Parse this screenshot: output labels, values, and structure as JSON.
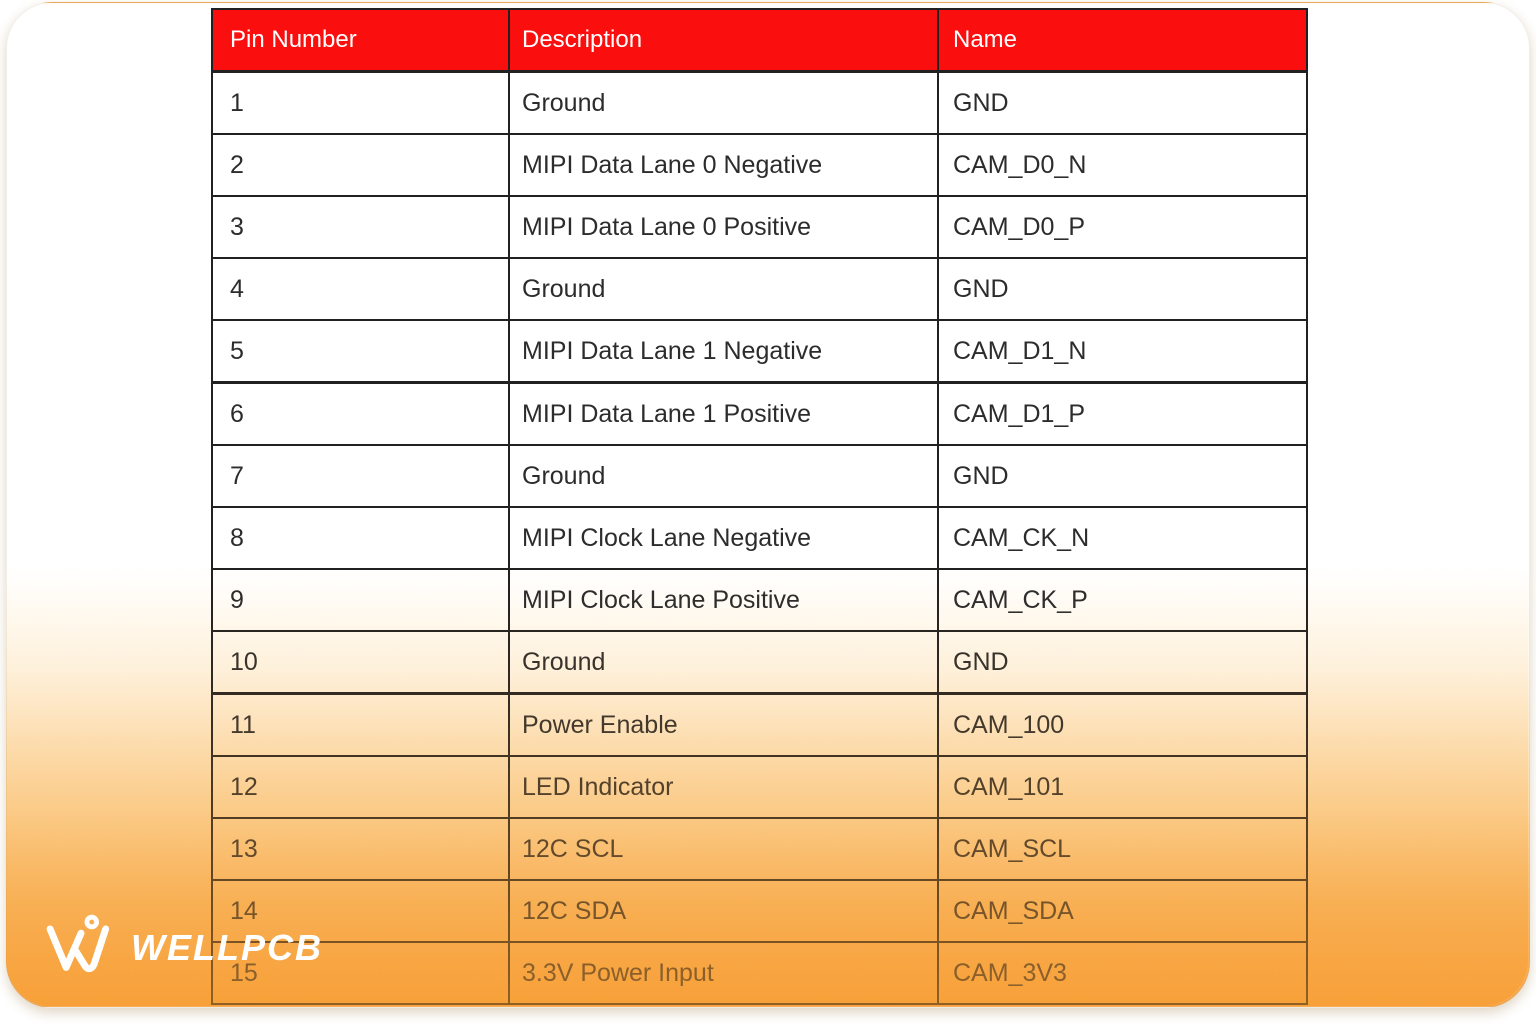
{
  "brand": {
    "name": "WELLPCB"
  },
  "colors": {
    "header_bg": "#fb0e0e",
    "header_text": "#ffffff",
    "body_text": "#2c2c2c",
    "table_border": "#212121",
    "gradient_bottom_orange": "#f7a84c",
    "logo_text": "#ffffff"
  },
  "table": {
    "columns": [
      "Pin Number",
      "Description",
      "Name"
    ],
    "rows": [
      {
        "pin": "1",
        "description": "Ground",
        "name": "GND"
      },
      {
        "pin": "2",
        "description": "MIPI Data Lane 0 Negative",
        "name": "CAM_D0_N"
      },
      {
        "pin": "3",
        "description": "MIPI Data Lane 0 Positive",
        "name": "CAM_D0_P"
      },
      {
        "pin": "4",
        "description": "Ground",
        "name": "GND"
      },
      {
        "pin": "5",
        "description": "MIPI Data Lane 1 Negative",
        "name": "CAM_D1_N"
      },
      {
        "pin": "6",
        "description": "MIPI Data Lane 1 Positive",
        "name": "CAM_D1_P"
      },
      {
        "pin": "7",
        "description": "Ground",
        "name": "GND"
      },
      {
        "pin": "8",
        "description": "MIPI Clock Lane Negative",
        "name": "CAM_CK_N"
      },
      {
        "pin": "9",
        "description": "MIPI Clock Lane Positive",
        "name": "CAM_CK_P"
      },
      {
        "pin": "10",
        "description": "Ground",
        "name": "GND"
      },
      {
        "pin": "11",
        "description": "Power Enable",
        "name": "CAM_100"
      },
      {
        "pin": "12",
        "description": "LED Indicator",
        "name": "CAM_101"
      },
      {
        "pin": "13",
        "description": "12C SCL",
        "name": "CAM_SCL"
      },
      {
        "pin": "14",
        "description": "12C SDA",
        "name": "CAM_SDA"
      },
      {
        "pin": "15",
        "description": "3.3V Power Input",
        "name": "CAM_3V3"
      }
    ]
  }
}
